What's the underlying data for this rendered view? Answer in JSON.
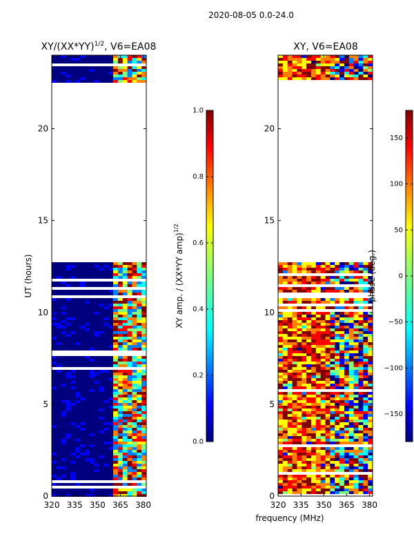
{
  "suptitle": "2020-08-05 0.0-24.0",
  "chart_data": [
    {
      "type": "heatmap",
      "title": "XY/(XX*YY)^{1/2}, V6=EA08",
      "title_main": "XY/(XX*YY)",
      "title_sup": "1/2",
      "title_tail": ", V6=EA08",
      "xlabel": "",
      "ylabel": "UT (hours)",
      "xlim": [
        320,
        382
      ],
      "ylim": [
        0,
        24
      ],
      "xticks": [
        320,
        335,
        350,
        365,
        380
      ],
      "yticks": [
        0,
        5,
        10,
        15,
        20
      ],
      "data_gap_hours": [
        12.8,
        22.5
      ],
      "colorbar": {
        "label": "XY amp. / (XX*YY amp)^{1/2}",
        "label_main": "XY amp. / (XX*YY amp)",
        "label_sup": "1/2",
        "range": [
          0.0,
          1.0
        ],
        "ticks": [
          "0.0",
          "0.2",
          "0.4",
          "0.6",
          "0.8",
          "1.0"
        ],
        "tick_values": [
          0.0,
          0.2,
          0.4,
          0.6,
          0.8,
          1.0
        ]
      }
    },
    {
      "type": "heatmap",
      "title": "XY, V6=EA08",
      "xlabel": "frequency (MHz)",
      "ylabel": "",
      "xlim": [
        320,
        382
      ],
      "ylim": [
        0,
        24
      ],
      "xticks": [
        320,
        335,
        350,
        365,
        380
      ],
      "yticks": [
        0,
        5,
        10,
        15,
        20
      ],
      "data_gap_hours": [
        12.8,
        22.5
      ],
      "colorbar": {
        "label": "phase (deg.)",
        "range": [
          -180,
          180
        ],
        "ticks": [
          "−150",
          "−100",
          "−50",
          "0",
          "50",
          "100",
          "150"
        ],
        "tick_values": [
          -150,
          -100,
          -50,
          0,
          50,
          100,
          150
        ]
      }
    }
  ],
  "colormap": [
    "#00007f",
    "#0000ff",
    "#007fff",
    "#00ffff",
    "#7fff7f",
    "#ffff00",
    "#ff7f00",
    "#ff0000",
    "#7f0000"
  ]
}
